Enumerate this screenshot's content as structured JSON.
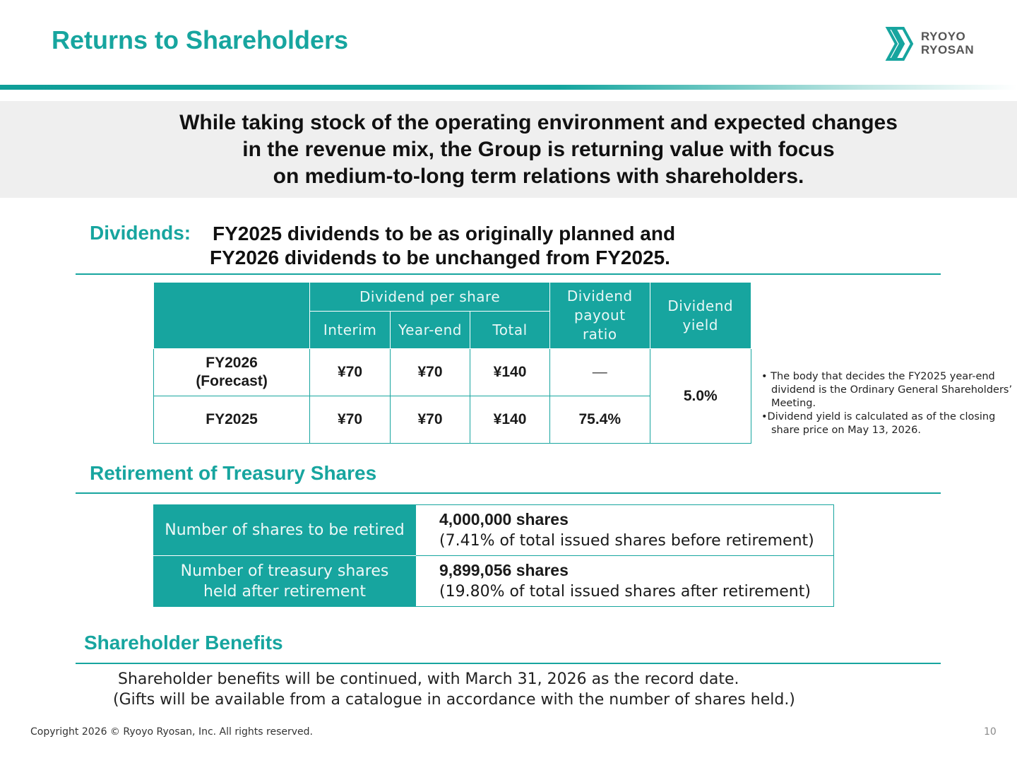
{
  "header": {
    "title": "Returns to Shareholders",
    "logo_line1": "RYOYO",
    "logo_line2": "RYOSAN"
  },
  "banner": {
    "line1": "While taking stock of the operating environment and expected changes",
    "line2": "in the revenue mix, the Group is returning value with focus",
    "line3": "on medium-to-long term relations with shareholders."
  },
  "dividends": {
    "label": "Dividends:",
    "headline1": "FY2025 dividends to be as originally planned and",
    "headline2": "FY2026 dividends to be unchanged from FY2025.",
    "table": {
      "col_group": "Dividend per share",
      "col_interim": "Interim",
      "col_yearend": "Year-end",
      "col_total": "Total",
      "col_payout_1": "Dividend",
      "col_payout_2": "payout",
      "col_payout_3": "ratio",
      "col_yield_1": "Dividend",
      "col_yield_2": "yield",
      "rows": [
        {
          "label1": "FY2026",
          "label2": "(Forecast)",
          "interim": "¥70",
          "yearend": "¥70",
          "total": "¥140",
          "payout": "—"
        },
        {
          "label1": "FY2025",
          "interim": "¥70",
          "yearend": "¥70",
          "total": "¥140",
          "payout": "75.4%"
        }
      ],
      "yield": "5.0%"
    },
    "notes": [
      "• The body that decides the  FY2025 year-end dividend is the Ordinary General Shareholders’ Meeting.",
      "•Dividend yield is calculated as of the closing share price on May 13, 2026."
    ]
  },
  "retirement": {
    "label": "Retirement of Treasury Shares",
    "rows": [
      {
        "header": "Number of shares to be retired",
        "value": "4,000,000 shares",
        "detail": "(7.41% of total issued shares before retirement)"
      },
      {
        "header1": "Number of treasury shares",
        "header2": "held after retirement",
        "value": "9,899,056 shares",
        "detail": "(19.80% of total issued shares after retirement)"
      }
    ]
  },
  "benefits": {
    "label": "Shareholder Benefits",
    "line1": "Shareholder benefits will be continued, with March 31, 2026 as the record date.",
    "line2": "(Gifts will be available from a catalogue in accordance with the number of shares held.)"
  },
  "footer": {
    "copyright": "Copyright 2026 © Ryoyo Ryosan, Inc. All rights reserved.",
    "page": "10"
  },
  "colors": {
    "accent": "#17a59f",
    "banner_bg": "#efefef"
  }
}
